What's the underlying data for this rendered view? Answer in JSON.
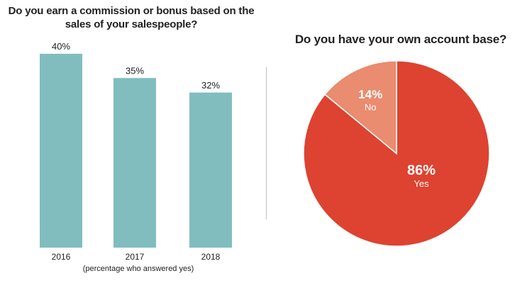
{
  "colors": {
    "bar": "#81bdbf",
    "pie_yes": "#dd4330",
    "pie_no": "#e98c6f",
    "pie_border": "#ffffff",
    "text": "#222222",
    "divider": "#bfbfbf"
  },
  "bar_chart": {
    "title": "Do you earn a commission or bonus based on the sales of your salespeople?",
    "note": "(percentage who answered yes)"
  },
  "pie_chart": {
    "title": "Do you have your own account base?"
  },
  "chart_data": [
    {
      "type": "bar",
      "title": "Do you earn a commission or bonus based on the sales of your salespeople?",
      "categories": [
        "2016",
        "2017",
        "2018"
      ],
      "values": [
        40,
        35,
        32
      ],
      "data_labels": [
        "40%",
        "35%",
        "32%"
      ],
      "xlabel": "(percentage who answered yes)",
      "ylabel": "",
      "ylim": [
        0,
        40
      ],
      "grid": false,
      "legend": "none"
    },
    {
      "type": "pie",
      "title": "Do you have your own account base?",
      "categories": [
        "Yes",
        "No"
      ],
      "values": [
        86,
        14
      ],
      "data_labels": [
        "86%",
        "14%"
      ],
      "legend": "none"
    }
  ]
}
